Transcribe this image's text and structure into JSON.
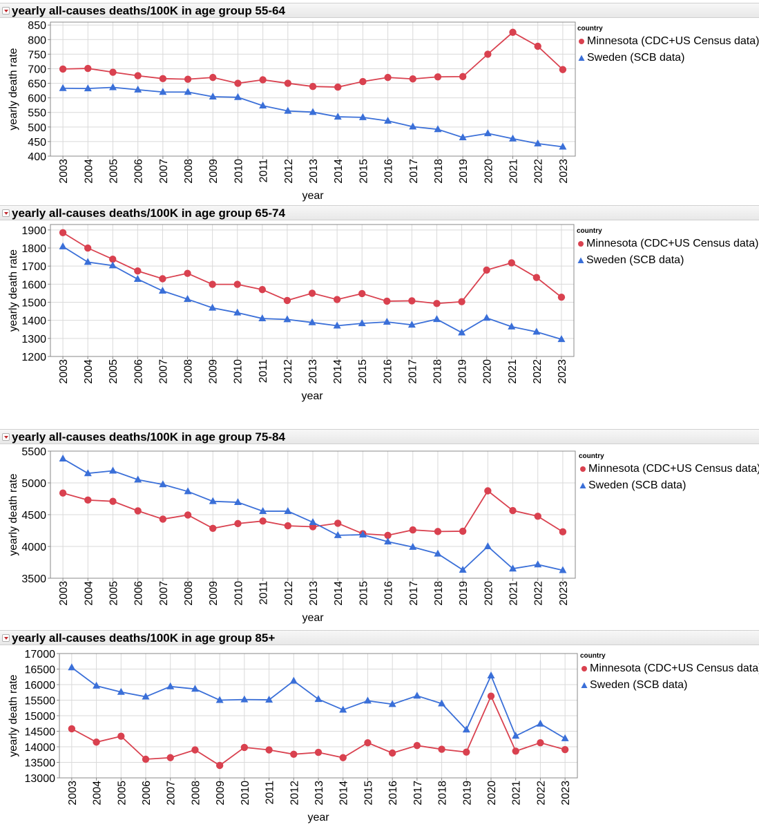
{
  "colors": {
    "minnesota": "#d9414f",
    "sweden": "#3a6fd8",
    "grid": "#d9d9d9",
    "axis": "#888888"
  },
  "chart_data": [
    {
      "type": "line",
      "title": "yearly all-causes deaths/100K in age group 55-64",
      "xlabel": "year",
      "ylabel": "yearly death rate",
      "x": [
        "2003",
        "2004",
        "2005",
        "2006",
        "2007",
        "2008",
        "2009",
        "2010",
        "2011",
        "2012",
        "2013",
        "2014",
        "2015",
        "2016",
        "2017",
        "2018",
        "2019",
        "2020",
        "2021",
        "2022",
        "2023"
      ],
      "ylim": [
        400,
        860
      ],
      "yticks": [
        400,
        450,
        500,
        550,
        600,
        650,
        700,
        750,
        800,
        850
      ],
      "legend_title": "country",
      "series": [
        {
          "name": "Minnesota (CDC+US Census data)",
          "marker": "circle",
          "values": [
            699,
            701,
            688,
            676,
            666,
            664,
            670,
            650,
            662,
            650,
            639,
            637,
            656,
            670,
            665,
            672,
            673,
            750,
            825,
            777,
            697
          ]
        },
        {
          "name": "Sweden (SCB data)",
          "marker": "triangle",
          "values": [
            633,
            632,
            636,
            628,
            620,
            620,
            604,
            602,
            573,
            555,
            551,
            535,
            533,
            521,
            501,
            492,
            464,
            478,
            460,
            443,
            432
          ]
        }
      ]
    },
    {
      "type": "line",
      "title": "yearly all-causes deaths/100K in age group 65-74",
      "xlabel": "year",
      "ylabel": "yearly death rate",
      "x": [
        "2003",
        "2004",
        "2005",
        "2006",
        "2007",
        "2008",
        "2009",
        "2010",
        "2011",
        "2012",
        "2013",
        "2014",
        "2015",
        "2016",
        "2017",
        "2018",
        "2019",
        "2020",
        "2021",
        "2022",
        "2023"
      ],
      "ylim": [
        1200,
        1930
      ],
      "yticks": [
        1200,
        1300,
        1400,
        1500,
        1600,
        1700,
        1800,
        1900
      ],
      "legend_title": "country",
      "series": [
        {
          "name": "Minnesota (CDC+US Census data)",
          "marker": "circle",
          "values": [
            1885,
            1800,
            1738,
            1673,
            1630,
            1660,
            1599,
            1599,
            1570,
            1510,
            1550,
            1515,
            1548,
            1506,
            1508,
            1493,
            1503,
            1678,
            1718,
            1637,
            1528
          ]
        },
        {
          "name": "Sweden (SCB data)",
          "marker": "triangle",
          "values": [
            1808,
            1722,
            1703,
            1628,
            1563,
            1517,
            1469,
            1442,
            1410,
            1405,
            1388,
            1370,
            1383,
            1391,
            1375,
            1406,
            1332,
            1413,
            1365,
            1336,
            1295
          ]
        }
      ]
    },
    {
      "type": "line",
      "title": "yearly all-causes deaths/100K in age group 75-84",
      "xlabel": "year",
      "ylabel": "yearly death rate",
      "x": [
        "2003",
        "2004",
        "2005",
        "2006",
        "2007",
        "2008",
        "2009",
        "2010",
        "2011",
        "2012",
        "2013",
        "2014",
        "2015",
        "2016",
        "2017",
        "2018",
        "2019",
        "2020",
        "2021",
        "2022",
        "2023"
      ],
      "ylim": [
        3500,
        5500
      ],
      "yticks": [
        3500,
        4000,
        4500,
        5000,
        5500
      ],
      "legend_title": "country",
      "series": [
        {
          "name": "Minnesota (CDC+US Census data)",
          "marker": "circle",
          "values": [
            4840,
            4730,
            4710,
            4560,
            4430,
            4495,
            4285,
            4360,
            4400,
            4325,
            4310,
            4365,
            4200,
            4175,
            4260,
            4235,
            4240,
            4875,
            4565,
            4475,
            4230
          ]
        },
        {
          "name": "Sweden (SCB data)",
          "marker": "triangle",
          "values": [
            5380,
            5150,
            5190,
            5050,
            4975,
            4865,
            4710,
            4695,
            4555,
            4555,
            4380,
            4175,
            4185,
            4075,
            3990,
            3885,
            3630,
            4000,
            3650,
            3715,
            3625
          ]
        }
      ]
    },
    {
      "type": "line",
      "title": "yearly all-causes deaths/100K in age group 85+",
      "xlabel": "year",
      "ylabel": "yearly death rate",
      "x": [
        "2003",
        "2004",
        "2005",
        "2006",
        "2007",
        "2008",
        "2009",
        "2010",
        "2011",
        "2012",
        "2013",
        "2014",
        "2015",
        "2016",
        "2017",
        "2018",
        "2019",
        "2020",
        "2021",
        "2022",
        "2023"
      ],
      "ylim": [
        13000,
        17000
      ],
      "yticks": [
        13000,
        13500,
        14000,
        14500,
        15000,
        15500,
        16000,
        16500,
        17000
      ],
      "legend_title": "country",
      "series": [
        {
          "name": "Minnesota (CDC+US Census data)",
          "marker": "circle",
          "values": [
            14580,
            14150,
            14340,
            13600,
            13650,
            13900,
            13400,
            13980,
            13900,
            13760,
            13820,
            13650,
            14130,
            13800,
            14040,
            13920,
            13830,
            15630,
            13860,
            14130,
            13910
          ]
        },
        {
          "name": "Sweden (SCB data)",
          "marker": "triangle",
          "values": [
            16550,
            15960,
            15760,
            15610,
            15940,
            15860,
            15500,
            15520,
            15510,
            16120,
            15530,
            15190,
            15480,
            15370,
            15640,
            15390,
            14550,
            16290,
            14350,
            14740,
            14270
          ]
        }
      ]
    }
  ]
}
